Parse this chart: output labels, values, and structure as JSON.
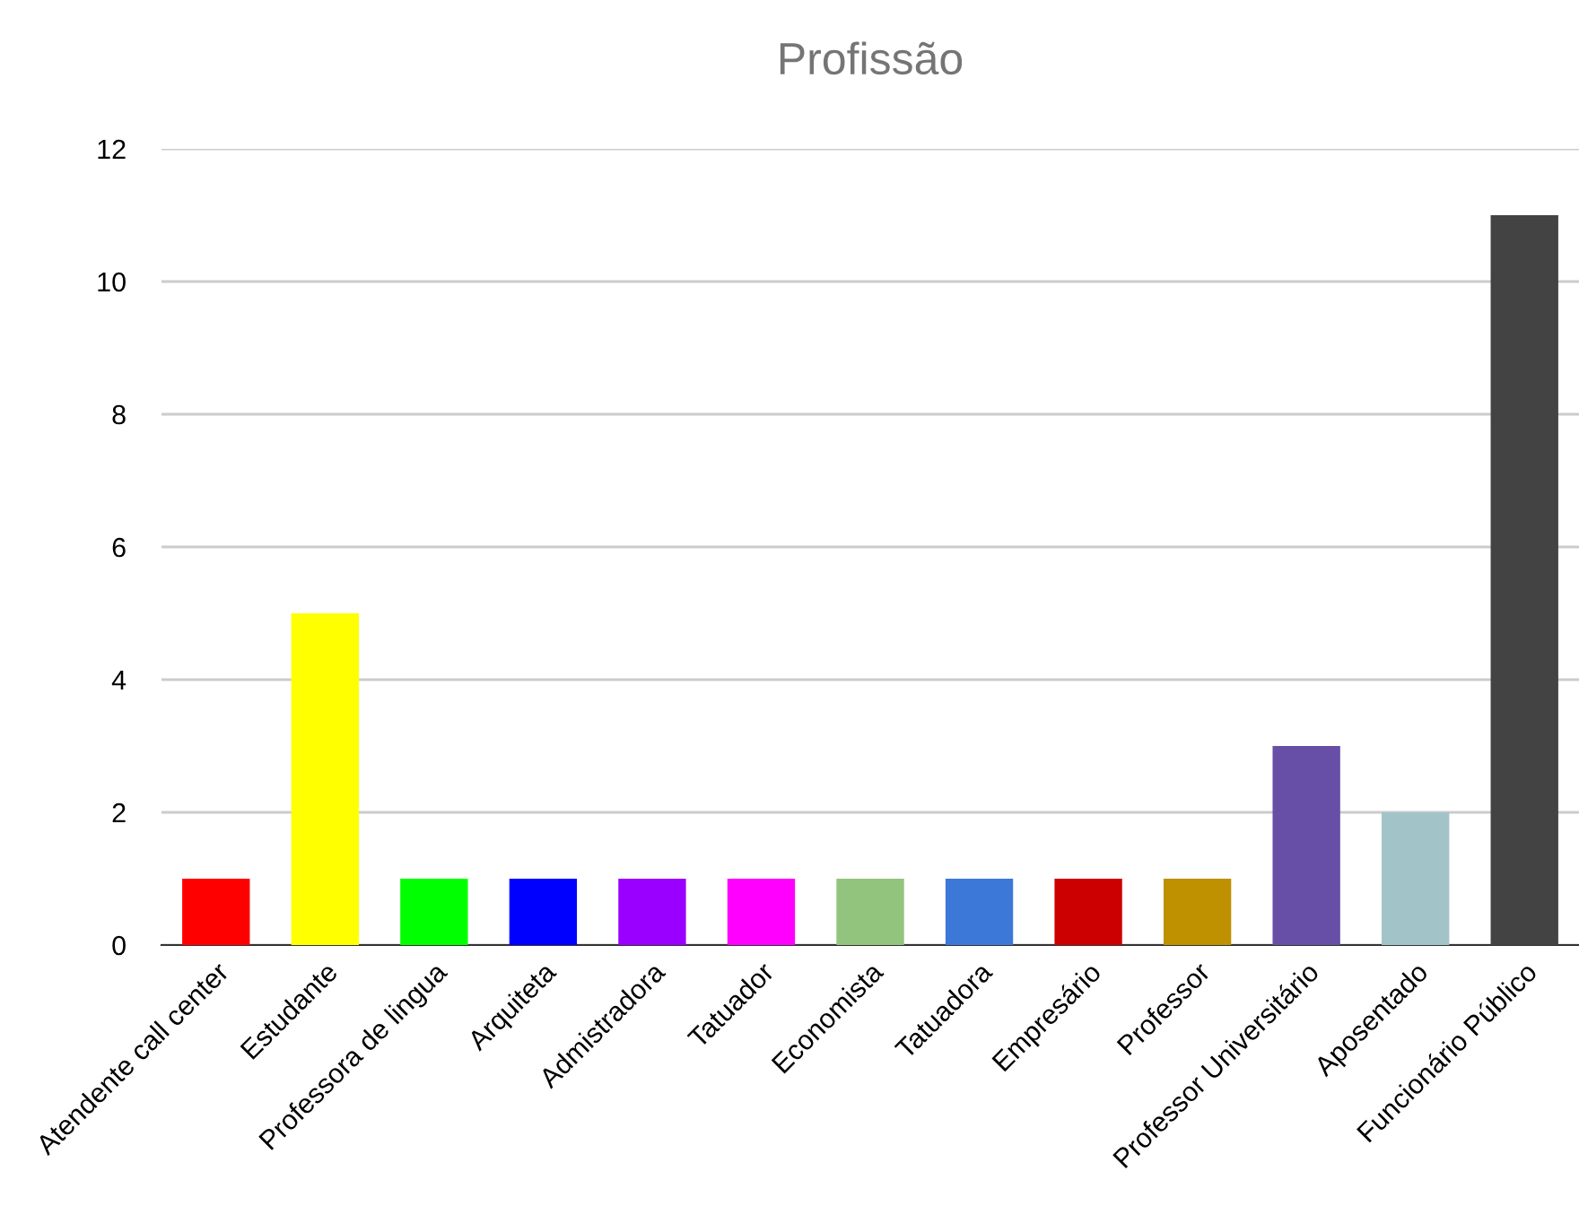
{
  "chart_data": {
    "type": "bar",
    "title": "Profissão",
    "categories": [
      "Atendente call center",
      "Estudante",
      "Professora de lingua",
      "Arquiteta",
      "Admistradora",
      "Tatuador",
      "Economista",
      "Tatuadora",
      "Empresário",
      "Professor",
      "Professor Universitário",
      "Aposentado",
      "Funcionário Público"
    ],
    "values": [
      1,
      5,
      1,
      1,
      1,
      1,
      1,
      1,
      1,
      1,
      3,
      2,
      11
    ],
    "colors": [
      "#ff0000",
      "#ffff00",
      "#00ff00",
      "#0000ff",
      "#9900ff",
      "#ff00ff",
      "#93c47d",
      "#3c78d8",
      "#cc0000",
      "#bf9000",
      "#674ea7",
      "#a2c4c9",
      "#434343"
    ],
    "ylim": [
      0,
      12
    ],
    "yticks": [
      0,
      2,
      4,
      6,
      8,
      10,
      12
    ],
    "grid": "y"
  }
}
